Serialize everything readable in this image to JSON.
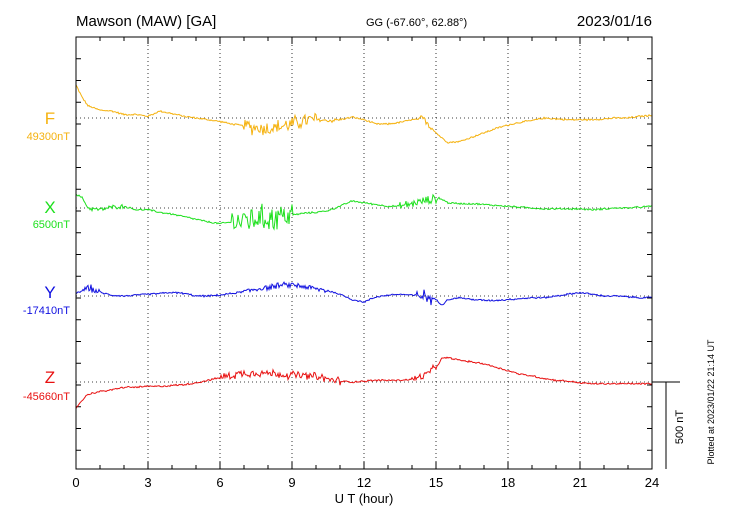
{
  "header": {
    "station": "Mawson (MAW)  [GA]",
    "coords": "GG (-67.60°,  62.88°)",
    "date": "2023/01/16"
  },
  "footer": {
    "xlabel": "U T (hour)",
    "plotted": "Plotted at 2023/01/22 21:14 UT"
  },
  "scale_bar": {
    "label": "500 nT",
    "value_nT": 500
  },
  "colors": {
    "F": "#f5b20f",
    "X": "#1ee01e",
    "Y": "#1010e0",
    "Z": "#e81010",
    "grid": "#000000"
  },
  "chart_data": {
    "type": "line",
    "title": "Mawson (MAW)  [GA]",
    "xlabel": "U T (hour)",
    "ylabel": "",
    "xlim": [
      0,
      24
    ],
    "x_ticks": [
      0,
      3,
      6,
      9,
      12,
      15,
      18,
      21,
      24
    ],
    "grid": true,
    "units": "nT",
    "series": [
      {
        "name": "F",
        "baseline_label": "49300nT",
        "baseline": 49300,
        "color": "#f5b20f",
        "x": [
          0,
          0.25,
          0.5,
          1,
          1.5,
          2,
          2.5,
          3,
          3.5,
          4,
          4.5,
          5,
          5.5,
          6,
          6.5,
          7,
          7.5,
          8,
          8.5,
          9,
          9.5,
          10,
          10.5,
          11,
          11.5,
          12,
          12.5,
          13,
          13.5,
          14,
          14.5,
          15,
          15.25,
          15.5,
          16,
          16.5,
          17,
          17.5,
          18,
          18.5,
          19,
          19.5,
          20,
          20.5,
          21,
          21.5,
          22,
          22.5,
          23,
          23.5,
          24
        ],
        "y": [
          49490,
          49420,
          49370,
          49345,
          49340,
          49320,
          49320,
          49310,
          49340,
          49325,
          49310,
          49300,
          49290,
          49280,
          49265,
          49255,
          49245,
          49240,
          49250,
          49265,
          49285,
          49290,
          49285,
          49290,
          49305,
          49290,
          49265,
          49265,
          49275,
          49290,
          49295,
          49215,
          49185,
          49160,
          49165,
          49190,
          49215,
          49240,
          49260,
          49275,
          49285,
          49300,
          49295,
          49290,
          49290,
          49290,
          49295,
          49300,
          49300,
          49310,
          49315
        ],
        "noise": [
          [
            7,
            10,
            55
          ],
          [
            14.3,
            14.8,
            25
          ],
          [
            10,
            11,
            15
          ]
        ]
      },
      {
        "name": "X",
        "baseline_label": "6500nT",
        "baseline": 6500,
        "color": "#1ee01e",
        "x": [
          0,
          0.25,
          0.5,
          1,
          1.5,
          2,
          2.5,
          3,
          3.5,
          4,
          4.5,
          5,
          5.5,
          6,
          6.5,
          7,
          7.5,
          8,
          8.5,
          9,
          9.5,
          10,
          10.5,
          11,
          11.5,
          12,
          12.5,
          13,
          13.5,
          14,
          14.5,
          15,
          15.25,
          15.5,
          16,
          16.5,
          17,
          17.5,
          18,
          18.5,
          19,
          19.5,
          20,
          20.5,
          21,
          21.5,
          22,
          22.5,
          23,
          23.5,
          24
        ],
        "y": [
          6580,
          6560,
          6500,
          6490,
          6505,
          6510,
          6490,
          6490,
          6475,
          6465,
          6450,
          6435,
          6420,
          6410,
          6420,
          6430,
          6440,
          6440,
          6455,
          6460,
          6470,
          6475,
          6485,
          6510,
          6540,
          6530,
          6520,
          6510,
          6510,
          6525,
          6540,
          6555,
          6550,
          6530,
          6525,
          6525,
          6520,
          6515,
          6510,
          6505,
          6500,
          6495,
          6495,
          6495,
          6495,
          6490,
          6495,
          6500,
          6500,
          6505,
          6510
        ],
        "noise": [
          [
            6.5,
            9,
            95
          ],
          [
            13.5,
            15.2,
            30
          ],
          [
            0.5,
            2,
            15
          ]
        ]
      },
      {
        "name": "Y",
        "baseline_label": "-17410nT",
        "baseline": -17410,
        "color": "#1010e0",
        "x": [
          0,
          0.25,
          0.5,
          0.75,
          1,
          1.5,
          2,
          2.5,
          3,
          3.5,
          4,
          4.5,
          5,
          5.5,
          6,
          6.5,
          7,
          7.5,
          8,
          8.5,
          9,
          9.5,
          10,
          10.5,
          11,
          11.5,
          12,
          12.25,
          12.5,
          13,
          13.5,
          14,
          14.5,
          15,
          15.25,
          15.5,
          16,
          16.5,
          17,
          17.5,
          18,
          18.5,
          19,
          19.5,
          20,
          20.5,
          21,
          21.5,
          22,
          22.5,
          23,
          23.5,
          24
        ],
        "y": [
          -17395,
          -17380,
          -17360,
          -17375,
          -17390,
          -17405,
          -17410,
          -17405,
          -17400,
          -17395,
          -17390,
          -17395,
          -17410,
          -17410,
          -17405,
          -17395,
          -17385,
          -17370,
          -17360,
          -17350,
          -17345,
          -17355,
          -17370,
          -17380,
          -17400,
          -17430,
          -17445,
          -17430,
          -17415,
          -17405,
          -17400,
          -17405,
          -17410,
          -17430,
          -17460,
          -17430,
          -17420,
          -17430,
          -17435,
          -17435,
          -17430,
          -17425,
          -17420,
          -17420,
          -17410,
          -17400,
          -17390,
          -17400,
          -17410,
          -17410,
          -17415,
          -17420,
          -17420
        ],
        "noise": [
          [
            14.2,
            14.8,
            45
          ],
          [
            7,
            10.5,
            20
          ],
          [
            0.3,
            1,
            25
          ]
        ]
      },
      {
        "name": "Z",
        "baseline_label": "-45660nT",
        "baseline": -45660,
        "color": "#e81010",
        "x": [
          0,
          0.25,
          0.5,
          1,
          1.5,
          2,
          2.5,
          3,
          3.5,
          4,
          4.5,
          5,
          5.5,
          6,
          6.5,
          7,
          7.5,
          8,
          8.5,
          9,
          9.5,
          10,
          10.5,
          11,
          11.5,
          12,
          12.5,
          13,
          13.5,
          14,
          14.5,
          15,
          15.25,
          15.5,
          16,
          16.5,
          17,
          17.5,
          18,
          18.5,
          19,
          19.5,
          20,
          20.5,
          21,
          21.5,
          22,
          22.5,
          23,
          23.5,
          24
        ],
        "y": [
          -45810,
          -45765,
          -45730,
          -45715,
          -45705,
          -45690,
          -45690,
          -45685,
          -45685,
          -45680,
          -45675,
          -45665,
          -45650,
          -45635,
          -45620,
          -45610,
          -45605,
          -45610,
          -45615,
          -45620,
          -45625,
          -45630,
          -45645,
          -45655,
          -45660,
          -45655,
          -45650,
          -45650,
          -45650,
          -45645,
          -45625,
          -45575,
          -45525,
          -45520,
          -45535,
          -45545,
          -45555,
          -45575,
          -45595,
          -45615,
          -45625,
          -45640,
          -45650,
          -45655,
          -45665,
          -45670,
          -45670,
          -45670,
          -45670,
          -45670,
          -45670
        ],
        "noise": [
          [
            6,
            11,
            30
          ],
          [
            14,
            15,
            25
          ]
        ]
      }
    ],
    "scale_bar_nT": 500
  }
}
